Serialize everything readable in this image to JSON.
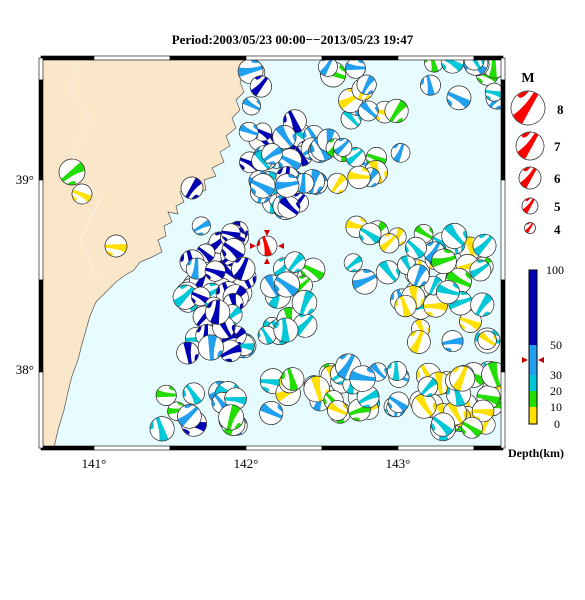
{
  "title": "Period:2003/05/23 00:00−−2013/05/23 19:47",
  "axes": {
    "lon_ticks": [
      "141°",
      "142°",
      "143°"
    ],
    "lat_ticks": [
      "39°",
      "38°"
    ]
  },
  "magnitude_legend": {
    "heading": "M",
    "items": [
      "8",
      "7",
      "6",
      "5",
      "4"
    ]
  },
  "depth_scale": {
    "labels": [
      "100",
      "50",
      "30",
      "20",
      "10",
      "0"
    ],
    "unit": "Depth(km)"
  },
  "colors": {
    "land": "#fae6c9",
    "sea": "#e6fcff",
    "focal_red": "#ff0000",
    "depth_0_10": "#ffe000",
    "depth_10_20": "#22dd00",
    "depth_20_30": "#00c8d8",
    "depth_30_50": "#22a0f0",
    "depth_50_100": "#0000b4"
  },
  "icons": {
    "focal_mechanism": "beachball-icon",
    "mainshock_marker": "red-triangle-marker-icon",
    "depth_pointer": "red-arrow-pointer-icon"
  }
}
